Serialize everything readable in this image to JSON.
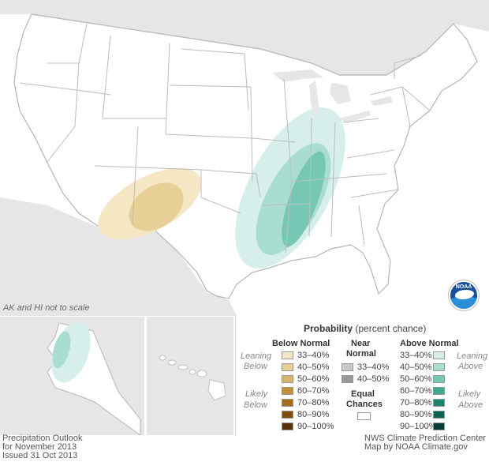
{
  "map": {
    "scale_note": "AK and HI not to scale",
    "colors": {
      "land": "#ffffff",
      "border": "#bdbdbd",
      "neighbor": "#e6e6e6",
      "below_33_40": "#f5e6c4",
      "below_40_50": "#e7cf95",
      "above_33_40": "#d6efea",
      "above_40_50": "#a9ddd0",
      "above_50_60": "#76c8b5"
    }
  },
  "legend": {
    "title": "Probability",
    "subtitle": "(percent chance)",
    "below_header": "Below Normal",
    "near_header_1": "Near",
    "near_header_2": "Normal",
    "above_header": "Above Normal",
    "leaning_left_1": "Leaning",
    "leaning_left_2": "Below",
    "likely_left_1": "Likely",
    "likely_left_2": "Below",
    "leaning_right_1": "Leaning",
    "leaning_right_2": "Above",
    "likely_right_1": "Likely",
    "likely_right_2": "Above",
    "equal_1": "Equal",
    "equal_2": "Chances",
    "below_items": [
      {
        "label": "33–40%",
        "color": "#f5e6c4"
      },
      {
        "label": "40–50%",
        "color": "#e7cf95"
      },
      {
        "label": "50–60%",
        "color": "#d8b56a"
      },
      {
        "label": "60–70%",
        "color": "#c48f3a"
      },
      {
        "label": "70–80%",
        "color": "#a76c1c"
      },
      {
        "label": "80–90%",
        "color": "#7e4a0f"
      },
      {
        "label": "90–100%",
        "color": "#5a300a"
      }
    ],
    "near_items": [
      {
        "label": "33–40%",
        "color": "#c8c8c8"
      },
      {
        "label": "40–50%",
        "color": "#999999"
      }
    ],
    "above_items": [
      {
        "label": "33–40%",
        "color": "#d6efea"
      },
      {
        "label": "40–50%",
        "color": "#a9ddd0"
      },
      {
        "label": "50–60%",
        "color": "#76c8b5"
      },
      {
        "label": "60–70%",
        "color": "#3fa891"
      },
      {
        "label": "70–80%",
        "color": "#1c8470"
      },
      {
        "label": "80–90%",
        "color": "#0d6353"
      },
      {
        "label": "90–100%",
        "color": "#053f34"
      }
    ]
  },
  "footer": {
    "left_line1": "Precipitation Outlook",
    "left_line2": "for November 2013",
    "left_line3": "Issued 31 Oct 2013",
    "right_line1": "NWS Climate Prediction Center",
    "right_line2": "Map by NOAA Climate.gov"
  },
  "logo": {
    "text": "NOAA"
  }
}
